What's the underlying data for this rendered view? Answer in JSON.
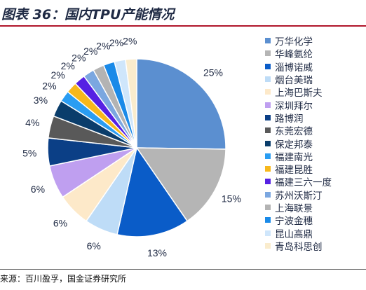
{
  "title": "图表 36：国内TPU产能情况",
  "source": "来源：百川盈孚，国金证券研究所",
  "chart_data": {
    "type": "pie",
    "categories": [
      "万华化学",
      "华峰氨纶",
      "淄博诺威",
      "烟台美瑞",
      "上海巴斯夫",
      "深圳拜尔",
      "路博润",
      "东莞宏德",
      "保定邦泰",
      "福建南光",
      "福建昆胜",
      "福建三六一度",
      "苏州沃斯汀",
      "上海联景",
      "宁波金穗",
      "昆山高鼎",
      "青岛科思创"
    ],
    "values": [
      25,
      15,
      13,
      6,
      6,
      6,
      5,
      4,
      3,
      2,
      2,
      2,
      2,
      2,
      2,
      2,
      2
    ],
    "labels": [
      "25%",
      "15%",
      "13%",
      "6%",
      "6%",
      "6%",
      "5%",
      "4%",
      "3%",
      "2%",
      "2%",
      "2%",
      "2%",
      "2%",
      "2%",
      "2%",
      "2%"
    ],
    "colors": [
      "#5b8fd0",
      "#b5b5b5",
      "#0a5cc8",
      "#bedcf7",
      "#fde9c9",
      "#bf9ff0",
      "#0b3f86",
      "#595959",
      "#0a3d6b",
      "#2a9df2",
      "#f7b81c",
      "#5621e3",
      "#7ba7e0",
      "#b3b3b3",
      "#1a8ae8",
      "#cfe6fb",
      "#faeccd"
    ],
    "legend_position": "right"
  }
}
